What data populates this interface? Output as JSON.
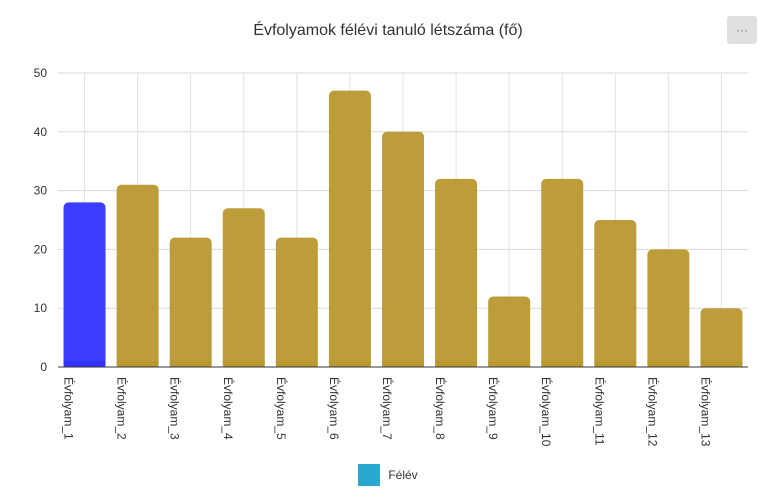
{
  "chart_data": {
    "type": "bar",
    "title": "Évfolyamok félévi tanuló létszáma (fő)",
    "categories": [
      "Évfolyam_1",
      "Évfolyam_2",
      "Évfolyam_3",
      "Évfolyam_4",
      "Évfolyam_5",
      "Évfolyam_6",
      "Évfolyam_7",
      "Évfolyam_8",
      "Évfolyam_9",
      "Évfolyam_10",
      "Évfolyam_11",
      "Évfolyam_12",
      "Évfolyam_13"
    ],
    "series": [
      {
        "name": "Félév",
        "values": [
          28,
          31,
          22,
          27,
          22,
          47,
          40,
          32,
          12,
          32,
          25,
          20,
          10
        ]
      }
    ],
    "ylim": [
      0,
      50
    ],
    "yticks": [
      0,
      10,
      20,
      30,
      40,
      50
    ],
    "grid": true,
    "legend_position": "bottom",
    "bar_color": "#b8982f",
    "highlight_color": "#3333ff",
    "highlight_index": 0,
    "legend_color": "#29a9cf"
  },
  "menu": {
    "label": "···"
  }
}
